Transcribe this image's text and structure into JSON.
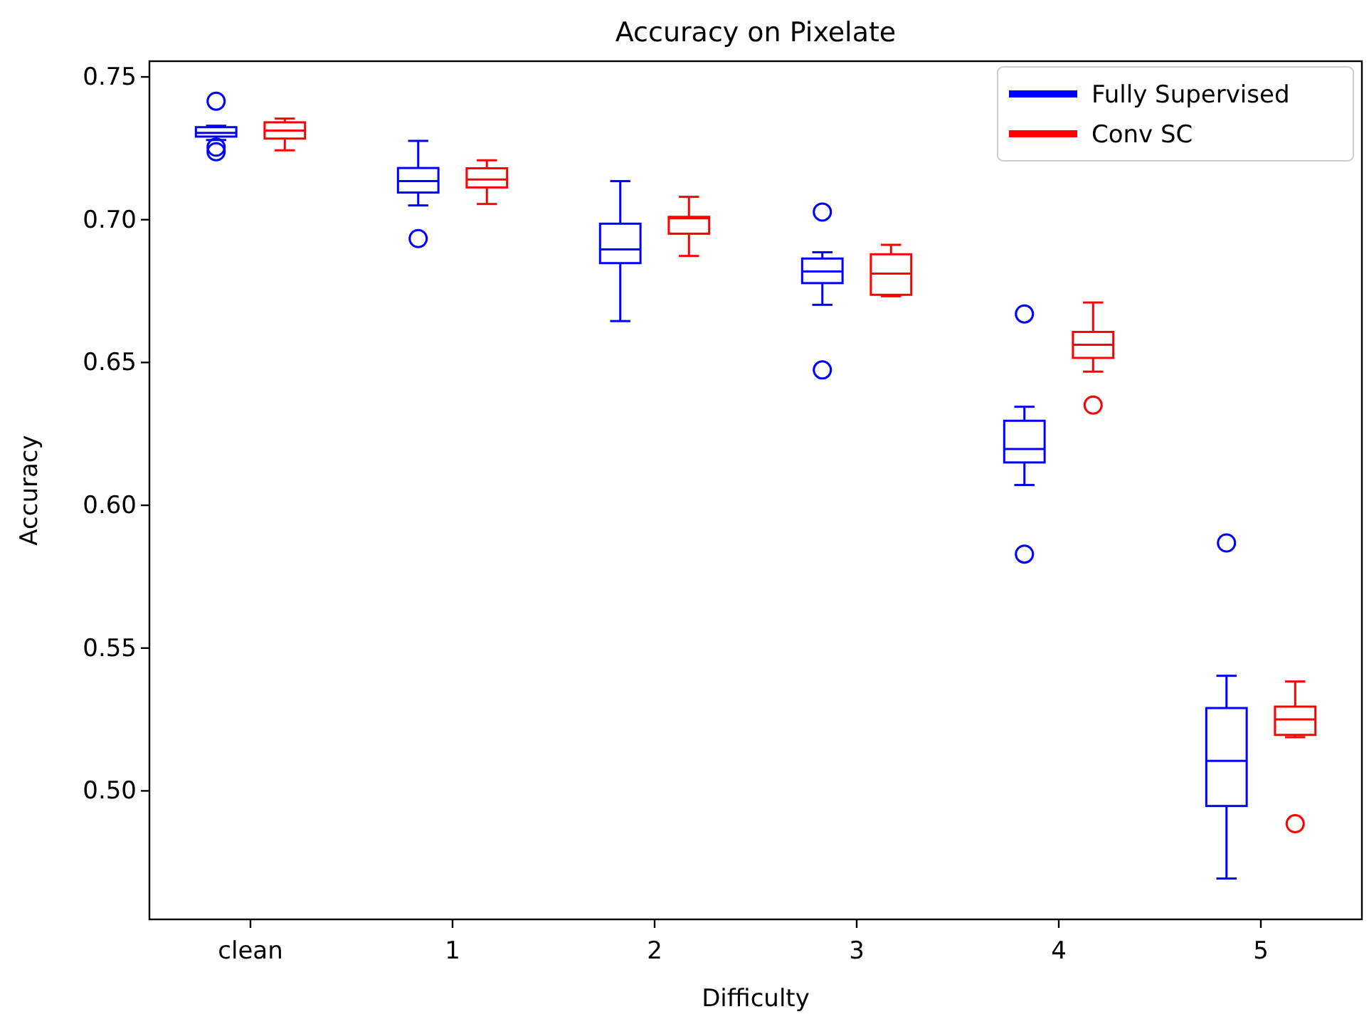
{
  "chart_data": {
    "type": "box",
    "title": "Accuracy on Pixelate",
    "xlabel": "Difficulty",
    "ylabel": "Accuracy",
    "categories": [
      "clean",
      "1",
      "2",
      "3",
      "4",
      "5"
    ],
    "ylim": [
      0.455,
      0.7555
    ],
    "yticks": [
      {
        "value": 0.5,
        "label": "0.50"
      },
      {
        "value": 0.55,
        "label": "0.55"
      },
      {
        "value": 0.6,
        "label": "0.60"
      },
      {
        "value": 0.65,
        "label": "0.65"
      },
      {
        "value": 0.7,
        "label": "0.70"
      },
      {
        "value": 0.75,
        "label": "0.75"
      }
    ],
    "grid": false,
    "legend": "top right",
    "series": [
      {
        "name": "Fully Supervised",
        "color": "#0000ff",
        "boxes": [
          {
            "low": 0.7279,
            "q1": 0.7291,
            "median": 0.7304,
            "q3": 0.7324,
            "high": 0.7329,
            "outliers": [
              0.7415,
              0.7254,
              0.7238
            ]
          },
          {
            "low": 0.705,
            "q1": 0.7095,
            "median": 0.7135,
            "q3": 0.7181,
            "high": 0.7276,
            "outliers": [
              0.6934
            ]
          },
          {
            "low": 0.6645,
            "q1": 0.6848,
            "median": 0.6896,
            "q3": 0.6986,
            "high": 0.7135
          },
          {
            "low": 0.6702,
            "q1": 0.6778,
            "median": 0.6819,
            "q3": 0.6864,
            "high": 0.6886,
            "outliers": [
              0.7027,
              0.6474
            ]
          },
          {
            "low": 0.6071,
            "q1": 0.615,
            "median": 0.6197,
            "q3": 0.6296,
            "high": 0.6345,
            "outliers": [
              0.667,
              0.5829
            ]
          },
          {
            "low": 0.4693,
            "q1": 0.4947,
            "median": 0.5105,
            "q3": 0.529,
            "high": 0.5403,
            "outliers": [
              0.5868
            ]
          }
        ]
      },
      {
        "name": "Conv SC",
        "color": "#ff0000",
        "boxes": [
          {
            "low": 0.7243,
            "q1": 0.7284,
            "median": 0.7312,
            "q3": 0.7341,
            "high": 0.7354
          },
          {
            "low": 0.7055,
            "q1": 0.7113,
            "median": 0.7141,
            "q3": 0.718,
            "high": 0.7208
          },
          {
            "low": 0.6873,
            "q1": 0.6951,
            "median": 0.7005,
            "q3": 0.701,
            "high": 0.708
          },
          {
            "low": 0.6732,
            "q1": 0.6737,
            "median": 0.6811,
            "q3": 0.6879,
            "high": 0.6912
          },
          {
            "low": 0.6468,
            "q1": 0.6516,
            "median": 0.6562,
            "q3": 0.6607,
            "high": 0.671,
            "outliers": [
              0.6351
            ]
          },
          {
            "low": 0.5188,
            "q1": 0.5196,
            "median": 0.525,
            "q3": 0.5295,
            "high": 0.5383,
            "outliers": [
              0.4885
            ]
          }
        ]
      }
    ]
  }
}
